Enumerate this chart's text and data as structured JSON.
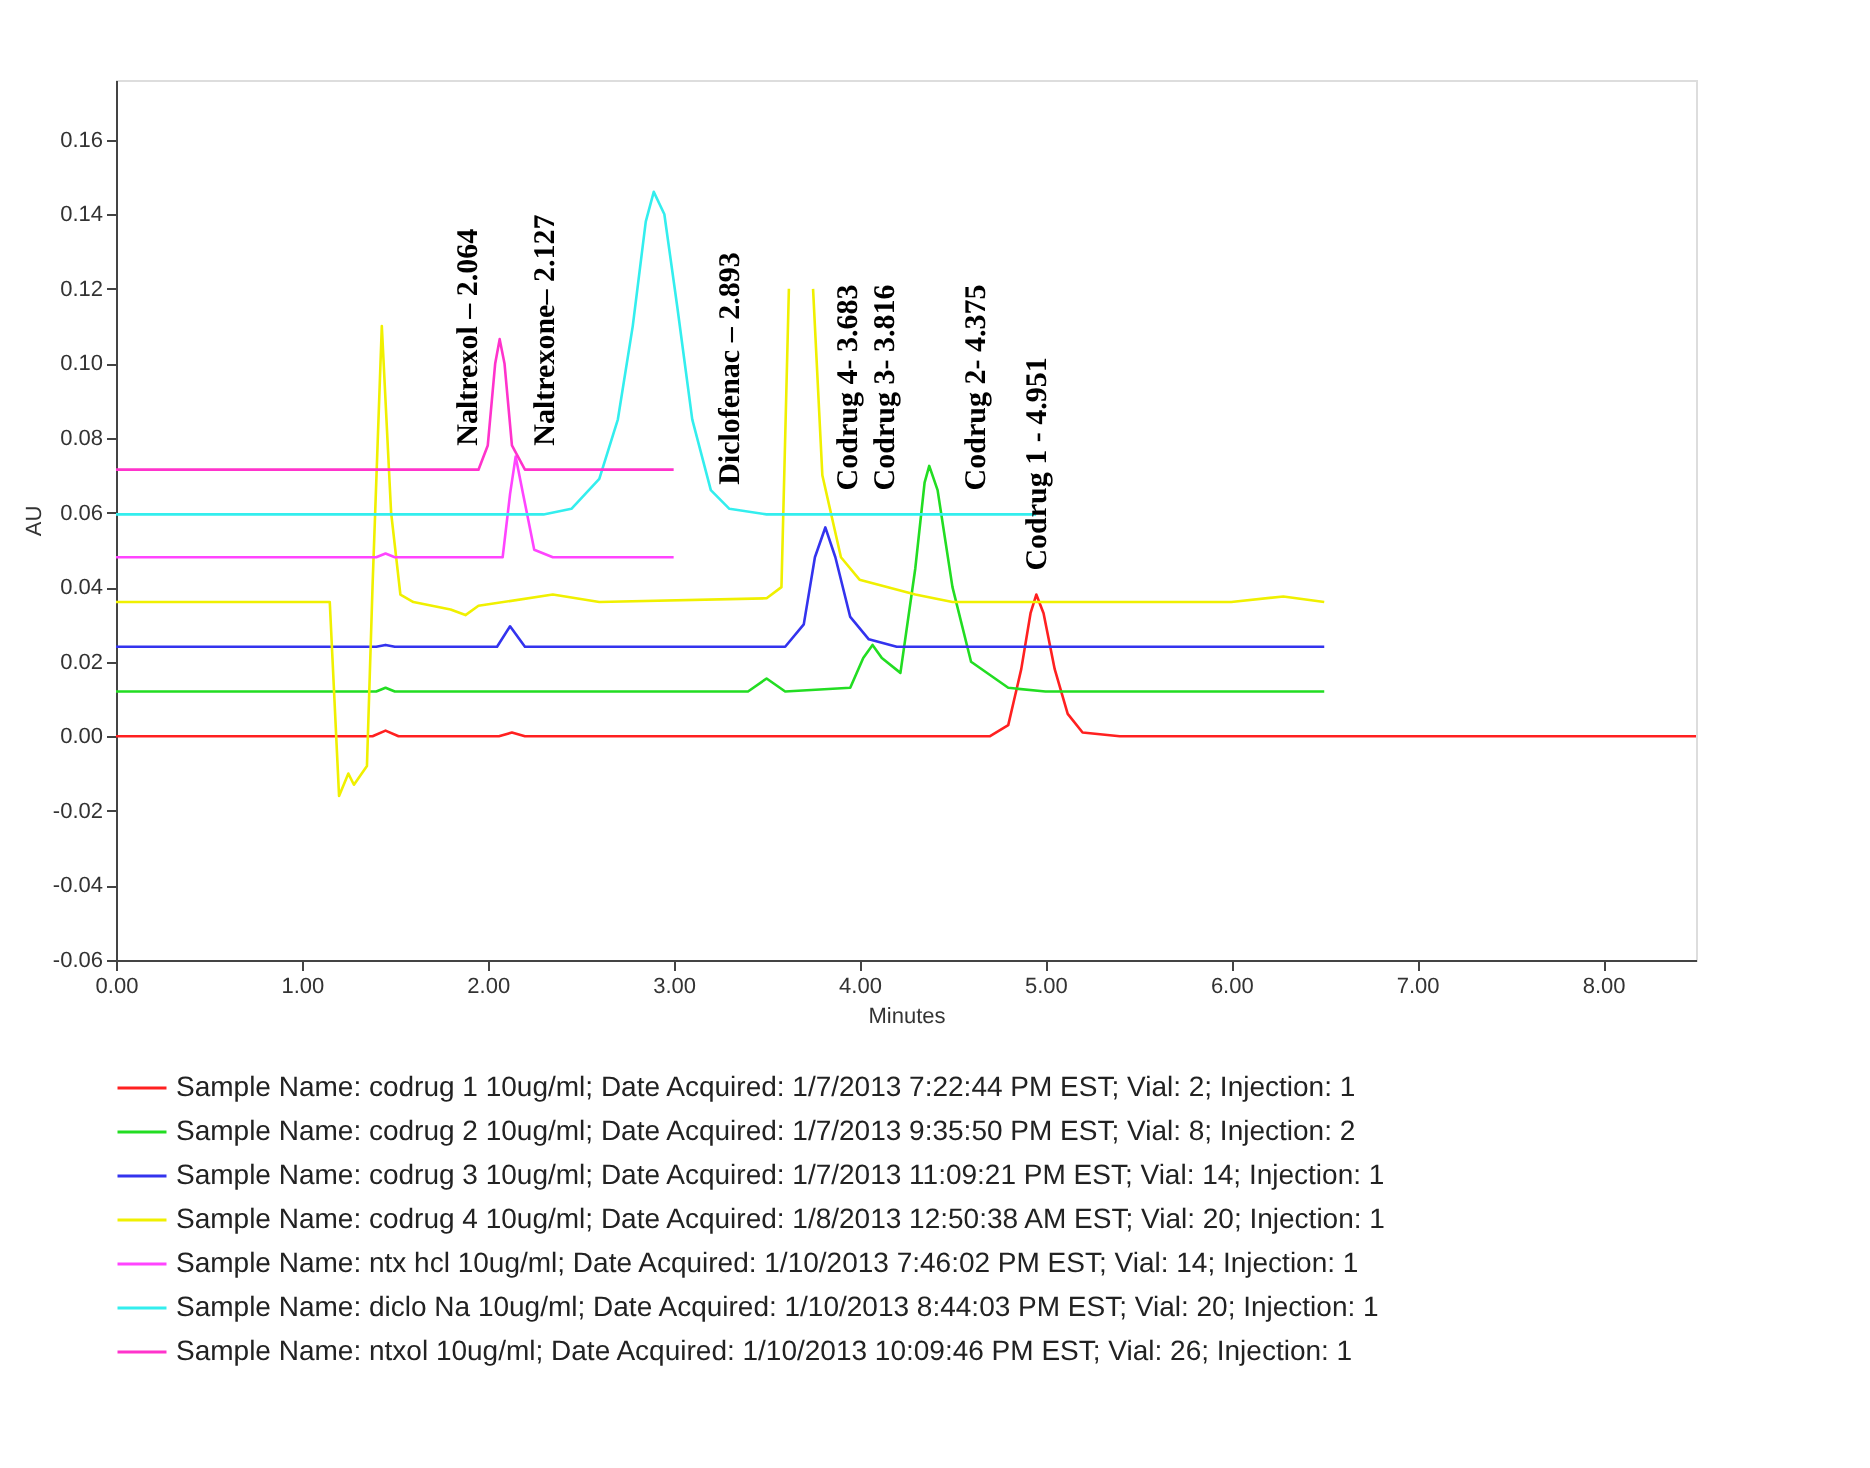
{
  "chart_data": {
    "type": "line",
    "xlabel": "Minutes",
    "ylabel": "AU",
    "xlim": [
      0,
      8.5
    ],
    "ylim": [
      -0.06,
      0.176
    ],
    "xticks": [
      {
        "value": 0,
        "label": "0.00"
      },
      {
        "value": 1,
        "label": "1.00"
      },
      {
        "value": 2,
        "label": "2.00"
      },
      {
        "value": 3,
        "label": "3.00"
      },
      {
        "value": 4,
        "label": "4.00"
      },
      {
        "value": 5,
        "label": "5.00"
      },
      {
        "value": 6,
        "label": "6.00"
      },
      {
        "value": 7,
        "label": "7.00"
      },
      {
        "value": 8,
        "label": "8.00"
      }
    ],
    "yticks": [
      -0.06,
      -0.04,
      -0.02,
      {
        "value": 0,
        "label": "0.00"
      },
      0.02,
      0.04,
      0.06,
      0.08,
      {
        "value": 0.1,
        "label": "0.10"
      },
      0.12,
      0.14,
      0.16
    ],
    "grid": false,
    "legend": "bottom",
    "series": [
      {
        "name": "Sample Name: codrug 1 10ug/ml;   Date Acquired: 1/7/2013 7:22:44 PM EST;   Vial: 2; Injection: 1",
        "color": "#ff2020",
        "x": [
          0,
          1.38,
          1.45,
          1.52,
          2.06,
          2.13,
          2.2,
          4.7,
          4.8,
          4.87,
          4.92,
          4.951,
          4.99,
          5.05,
          5.12,
          5.2,
          5.4,
          8.5
        ],
        "values": [
          0,
          0,
          0.0015,
          0,
          0,
          0.001,
          0,
          0,
          0.003,
          0.018,
          0.033,
          0.038,
          0.033,
          0.018,
          0.006,
          0.001,
          0,
          0
        ]
      },
      {
        "name": "Sample Name: codrug 2 10ug/ml;   Date Acquired: 1/7/2013 9:35:50 PM EST;   Vial: 8; Injection: 2",
        "color": "#22dd22",
        "x": [
          0,
          1.4,
          1.45,
          1.5,
          3.4,
          3.5,
          3.6,
          3.95,
          4.02,
          4.07,
          4.12,
          4.22,
          4.3,
          4.35,
          4.375,
          4.42,
          4.5,
          4.6,
          4.8,
          5.0,
          6.5
        ],
        "values": [
          0.012,
          0.012,
          0.013,
          0.012,
          0.012,
          0.0155,
          0.012,
          0.013,
          0.021,
          0.0245,
          0.021,
          0.017,
          0.045,
          0.068,
          0.0725,
          0.066,
          0.04,
          0.02,
          0.013,
          0.012,
          0.012
        ]
      },
      {
        "name": "Sample Name: codrug 3 10ug/ml;   Date Acquired: 1/7/2013 11:09:21 PM EST;   Vial: 14; Injection: 1",
        "color": "#3333ee",
        "x": [
          0,
          1.4,
          1.45,
          1.5,
          2.05,
          2.12,
          2.2,
          3.6,
          3.7,
          3.76,
          3.816,
          3.87,
          3.95,
          4.05,
          4.2,
          6.5
        ],
        "values": [
          0.024,
          0.024,
          0.0245,
          0.024,
          0.024,
          0.0295,
          0.024,
          0.024,
          0.03,
          0.048,
          0.056,
          0.048,
          0.032,
          0.026,
          0.024,
          0.024
        ]
      },
      {
        "name": "Sample Name: codrug 4 10ug/ml;   Date Acquired: 1/8/2013 12:50:38 AM EST;   Vial: 20; Injection: 1",
        "color": "#f0f000",
        "x": [
          0,
          1.15,
          1.2,
          1.25,
          1.28,
          1.35,
          1.38,
          1.43,
          1.48,
          1.53,
          1.6,
          1.8,
          1.88,
          1.95,
          2.35,
          2.6,
          3.5,
          3.58,
          3.62,
          3.65,
          3.71,
          3.75,
          3.8,
          3.9,
          4.0,
          4.3,
          4.5,
          6.0,
          6.28,
          6.5
        ],
        "values": [
          0.036,
          0.036,
          -0.016,
          -0.01,
          -0.013,
          -0.008,
          0.04,
          0.11,
          0.06,
          0.038,
          0.036,
          0.034,
          0.0325,
          0.035,
          0.038,
          0.036,
          0.037,
          0.04,
          0.12,
          null,
          null,
          0.12,
          0.07,
          0.048,
          0.042,
          0.038,
          0.036,
          0.036,
          0.0375,
          0.036
        ]
      },
      {
        "name": "Sample Name: ntx hcl 10ug/ml;   Date Acquired: 1/10/2013 7:46:02 PM EST;   Vial: 14; Injection: 1",
        "color": "#ff44ff",
        "x": [
          0,
          1.4,
          1.45,
          1.5,
          2.08,
          2.12,
          2.15,
          2.19,
          2.25,
          2.35,
          3.0
        ],
        "values": [
          0.048,
          0.048,
          0.049,
          0.048,
          0.048,
          0.065,
          0.075,
          0.065,
          0.05,
          0.048,
          0.048
        ]
      },
      {
        "name": "Sample Name: diclo Na 10ug/ml;   Date Acquired: 1/10/2013 8:44:03 PM EST;   Vial: 20; Injection: 1",
        "color": "#33eeee",
        "x": [
          0,
          2.3,
          2.45,
          2.6,
          2.7,
          2.78,
          2.85,
          2.893,
          2.95,
          3.02,
          3.1,
          3.2,
          3.3,
          3.5,
          4.95
        ],
        "values": [
          0.0595,
          0.0595,
          0.061,
          0.069,
          0.085,
          0.11,
          0.138,
          0.146,
          0.14,
          0.115,
          0.085,
          0.066,
          0.061,
          0.0595,
          0.0595
        ]
      },
      {
        "name": "Sample Name: ntxol 10ug/ml;   Date Acquired: 1/10/2013 10:09:46 PM EST;   Vial: 26; Injection: 1",
        "color": "#ff33cc",
        "x": [
          0,
          1.95,
          2.0,
          2.04,
          2.064,
          2.09,
          2.13,
          2.2,
          3.0
        ],
        "values": [
          0.0715,
          0.0715,
          0.078,
          0.1,
          0.1065,
          0.1,
          0.078,
          0.0715,
          0.0715
        ]
      }
    ],
    "annotations": [
      {
        "text": "Naltrexol – 2.064",
        "x": 1.89,
        "y": 0.0715
      },
      {
        "text": "Naltrexone– 2.127",
        "x": 2.3,
        "y": 0.0715
      },
      {
        "text": "Diclofenac – 2.893",
        "x": 3.3,
        "y": 0.061
      },
      {
        "text": "Codrug 4- 3.683",
        "x": 3.93,
        "y": 0.0595
      },
      {
        "text": "Codrug 3- 3.816",
        "x": 4.13,
        "y": 0.0595
      },
      {
        "text": "Codrug 2- 4.375",
        "x": 4.62,
        "y": 0.0595
      },
      {
        "text": "Codrug 1 - 4.951",
        "x": 4.951,
        "y": 0.038
      }
    ]
  }
}
